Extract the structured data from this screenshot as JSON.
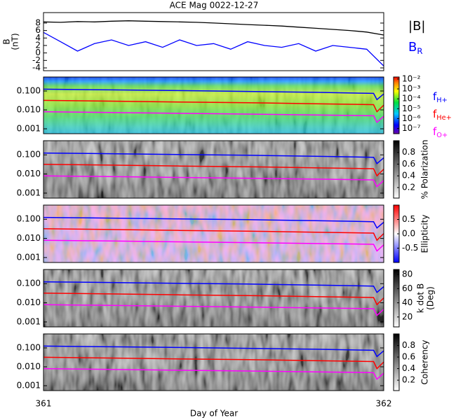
{
  "chart_data": [
    {
      "type": "line",
      "title": "ACE Mag 0022-12-27",
      "ylabel": "B",
      "ylabel_unit": "(nT)",
      "xlim": [
        361,
        362
      ],
      "ylim": [
        -4.75,
        10.8
      ],
      "yticks": [
        -4,
        -2,
        0,
        2,
        4,
        6,
        8
      ],
      "x": [
        361,
        361.05,
        361.1,
        361.15,
        361.2,
        361.25,
        361.3,
        361.35,
        361.4,
        361.45,
        361.5,
        361.55,
        361.6,
        361.65,
        361.7,
        361.75,
        361.8,
        361.85,
        361.9,
        361.95,
        362
      ],
      "series": [
        {
          "name": "|B|",
          "color": "#000000",
          "values": [
            8.3,
            8.2,
            8.4,
            8.3,
            8.5,
            8.6,
            8.5,
            8.4,
            8.3,
            8.2,
            8.0,
            7.8,
            7.6,
            7.4,
            7.2,
            6.9,
            6.6,
            6.3,
            6.0,
            5.6,
            4.8
          ]
        },
        {
          "name": "B",
          "subscript": "R",
          "color": "#0000ff",
          "values": [
            5.5,
            3.0,
            0.5,
            2.5,
            3.5,
            2.0,
            3.0,
            1.5,
            3.5,
            2.0,
            2.5,
            1.0,
            3.0,
            2.0,
            1.5,
            2.5,
            0.5,
            2.0,
            1.5,
            1.0,
            -3.5
          ]
        }
      ]
    },
    {
      "type": "spectrogram",
      "log": true,
      "xlim": [
        361,
        362
      ],
      "ylim": [
        0.00055,
        0.55
      ],
      "yticks": [
        {
          "value": 0.1,
          "label": "0.100"
        },
        {
          "value": 0.01,
          "label": "0.010"
        },
        0.001
      ],
      "x": [
        361,
        361.2,
        361.4,
        361.6,
        361.8,
        361.97,
        361.98,
        362
      ],
      "series": [
        {
          "name": "f",
          "subscript": "H+",
          "color": "#0000ff",
          "values": [
            0.125,
            0.115,
            0.105,
            0.095,
            0.085,
            0.075,
            0.035,
            0.07
          ]
        },
        {
          "name": "f",
          "subscript": "He+",
          "color": "#ff0000",
          "values": [
            0.032,
            0.029,
            0.026,
            0.024,
            0.021,
            0.019,
            0.008,
            0.018
          ]
        },
        {
          "name": "f",
          "subscript": "O+",
          "color": "#ff00ff",
          "values": [
            0.008,
            0.0073,
            0.0066,
            0.006,
            0.0054,
            0.0049,
            0.0022,
            0.0046
          ]
        }
      ],
      "colorbar": {
        "colormap": "rainbow",
        "log": true,
        "lim": [
          3e-08,
          0.016
        ],
        "ticks": [
          {
            "value": 0.01,
            "label": "10⁻²"
          },
          {
            "value": 0.001,
            "label": "10⁻³"
          },
          {
            "value": 0.0001,
            "label": "10⁻⁴"
          },
          {
            "value": 1e-05,
            "label": "10⁻⁵"
          },
          {
            "value": 1e-06,
            "label": "10⁻⁶"
          },
          {
            "value": 1e-07,
            "label": "10⁻⁷"
          }
        ]
      }
    },
    {
      "type": "spectrogram",
      "log": true,
      "xlim": [
        361,
        362
      ],
      "ylim": [
        0.00055,
        0.55
      ],
      "yticks": [
        {
          "value": 0.1,
          "label": "0.100"
        },
        {
          "value": 0.01,
          "label": "0.010"
        },
        0.001
      ],
      "x": [
        361,
        361.2,
        361.4,
        361.6,
        361.8,
        361.97,
        361.98,
        362
      ],
      "series": [
        {
          "color": "#0000ff",
          "values": [
            0.125,
            0.115,
            0.105,
            0.095,
            0.085,
            0.075,
            0.035,
            0.07
          ]
        },
        {
          "color": "#ff0000",
          "values": [
            0.032,
            0.029,
            0.026,
            0.024,
            0.021,
            0.019,
            0.008,
            0.018
          ]
        },
        {
          "color": "#ff00ff",
          "values": [
            0.008,
            0.0073,
            0.0066,
            0.006,
            0.0054,
            0.0049,
            0.0022,
            0.0046
          ]
        }
      ],
      "colorbar": {
        "colormap": "gray",
        "label": "% Polarization",
        "lim": [
          0.02,
          1
        ],
        "ticks": [
          0.2,
          0.4,
          0.6,
          0.8
        ]
      }
    },
    {
      "type": "spectrogram",
      "log": true,
      "xlim": [
        361,
        362
      ],
      "ylim": [
        0.00055,
        0.55
      ],
      "yticks": [
        {
          "value": 0.1,
          "label": "0.100"
        },
        {
          "value": 0.01,
          "label": "0.010"
        },
        0.001
      ],
      "x": [
        361,
        361.2,
        361.4,
        361.6,
        361.8,
        361.97,
        361.98,
        362
      ],
      "series": [
        {
          "color": "#0000ff",
          "values": [
            0.125,
            0.115,
            0.105,
            0.095,
            0.085,
            0.075,
            0.035,
            0.07
          ]
        },
        {
          "color": "#ff0000",
          "values": [
            0.032,
            0.029,
            0.026,
            0.024,
            0.021,
            0.019,
            0.008,
            0.018
          ]
        },
        {
          "color": "#ff00ff",
          "values": [
            0.008,
            0.0073,
            0.0066,
            0.006,
            0.0054,
            0.0049,
            0.0022,
            0.0046
          ]
        }
      ],
      "colorbar": {
        "colormap": "bwr",
        "label": "Ellipticity",
        "lim": [
          -1,
          1
        ],
        "ticks": [
          -0.5,
          {
            "value": 0,
            "label": "0.0"
          },
          0.5
        ]
      }
    },
    {
      "type": "spectrogram",
      "log": true,
      "xlim": [
        361,
        362
      ],
      "ylim": [
        0.00055,
        0.55
      ],
      "yticks": [
        {
          "value": 0.1,
          "label": "0.100"
        },
        {
          "value": 0.01,
          "label": "0.010"
        },
        0.001
      ],
      "x": [
        361,
        361.2,
        361.4,
        361.6,
        361.8,
        361.97,
        361.98,
        362
      ],
      "series": [
        {
          "color": "#0000ff",
          "values": [
            0.125,
            0.115,
            0.105,
            0.095,
            0.085,
            0.075,
            0.035,
            0.07
          ]
        },
        {
          "color": "#ff0000",
          "values": [
            0.032,
            0.029,
            0.026,
            0.024,
            0.021,
            0.019,
            0.008,
            0.018
          ]
        },
        {
          "color": "#ff00ff",
          "values": [
            0.008,
            0.0073,
            0.0066,
            0.006,
            0.0054,
            0.0049,
            0.0022,
            0.0046
          ]
        }
      ],
      "colorbar": {
        "colormap": "gray",
        "label": "k dot B",
        "label_unit": "(Deg)",
        "lim": [
          6,
          87
        ],
        "ticks": [
          20,
          40,
          60,
          80
        ]
      }
    },
    {
      "type": "spectrogram",
      "log": true,
      "xlim": [
        361,
        362
      ],
      "ylim": [
        0.00055,
        0.55
      ],
      "yticks": [
        {
          "value": 0.1,
          "label": "0.100"
        },
        {
          "value": 0.01,
          "label": "0.010"
        },
        0.001
      ],
      "x": [
        361,
        361.2,
        361.4,
        361.6,
        361.8,
        361.97,
        361.98,
        362
      ],
      "series": [
        {
          "color": "#0000ff",
          "values": [
            0.125,
            0.115,
            0.105,
            0.095,
            0.085,
            0.075,
            0.035,
            0.07
          ]
        },
        {
          "color": "#ff0000",
          "values": [
            0.032,
            0.029,
            0.026,
            0.024,
            0.021,
            0.019,
            0.008,
            0.018
          ]
        },
        {
          "color": "#ff00ff",
          "values": [
            0.008,
            0.0073,
            0.0066,
            0.006,
            0.0054,
            0.0049,
            0.0022,
            0.0046
          ]
        }
      ],
      "colorbar": {
        "colormap": "gray",
        "label": "Coherency",
        "lim": [
          0.02,
          1
        ],
        "ticks": [
          0.2,
          0.4,
          0.6,
          0.8
        ]
      },
      "xticks": [
        361,
        362
      ],
      "xlabel": "Day of Year"
    }
  ]
}
